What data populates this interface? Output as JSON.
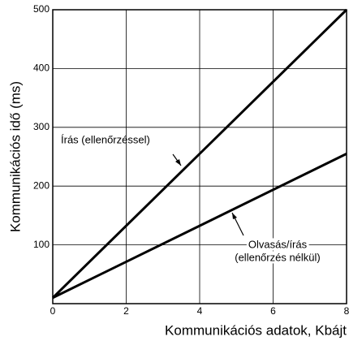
{
  "chart_data": {
    "type": "line",
    "x_label": "Kommunikációs adatok, Kbájt",
    "y_label": "Kommunikációs idő (ms)",
    "x": [
      0,
      8
    ],
    "series": [
      {
        "name": "Írás (ellenőrzéssel)",
        "color": "#000000",
        "values": [
          10,
          500
        ]
      },
      {
        "name": "Olvasás/írás (ellenőrzés nélkül)",
        "color": "#000000",
        "values": [
          10,
          255
        ]
      }
    ],
    "annotations": [
      {
        "lines": [
          "Írás (ellenőrzéssel)"
        ]
      },
      {
        "lines": [
          "Olvasás/írás",
          "(ellenőrzés nélkül)"
        ]
      }
    ],
    "xlim": [
      0,
      8
    ],
    "xticks": [
      0,
      2,
      4,
      6,
      8
    ],
    "ylim": [
      0,
      500
    ],
    "yticks": [
      100,
      200,
      300,
      400,
      500
    ],
    "grid": true
  }
}
